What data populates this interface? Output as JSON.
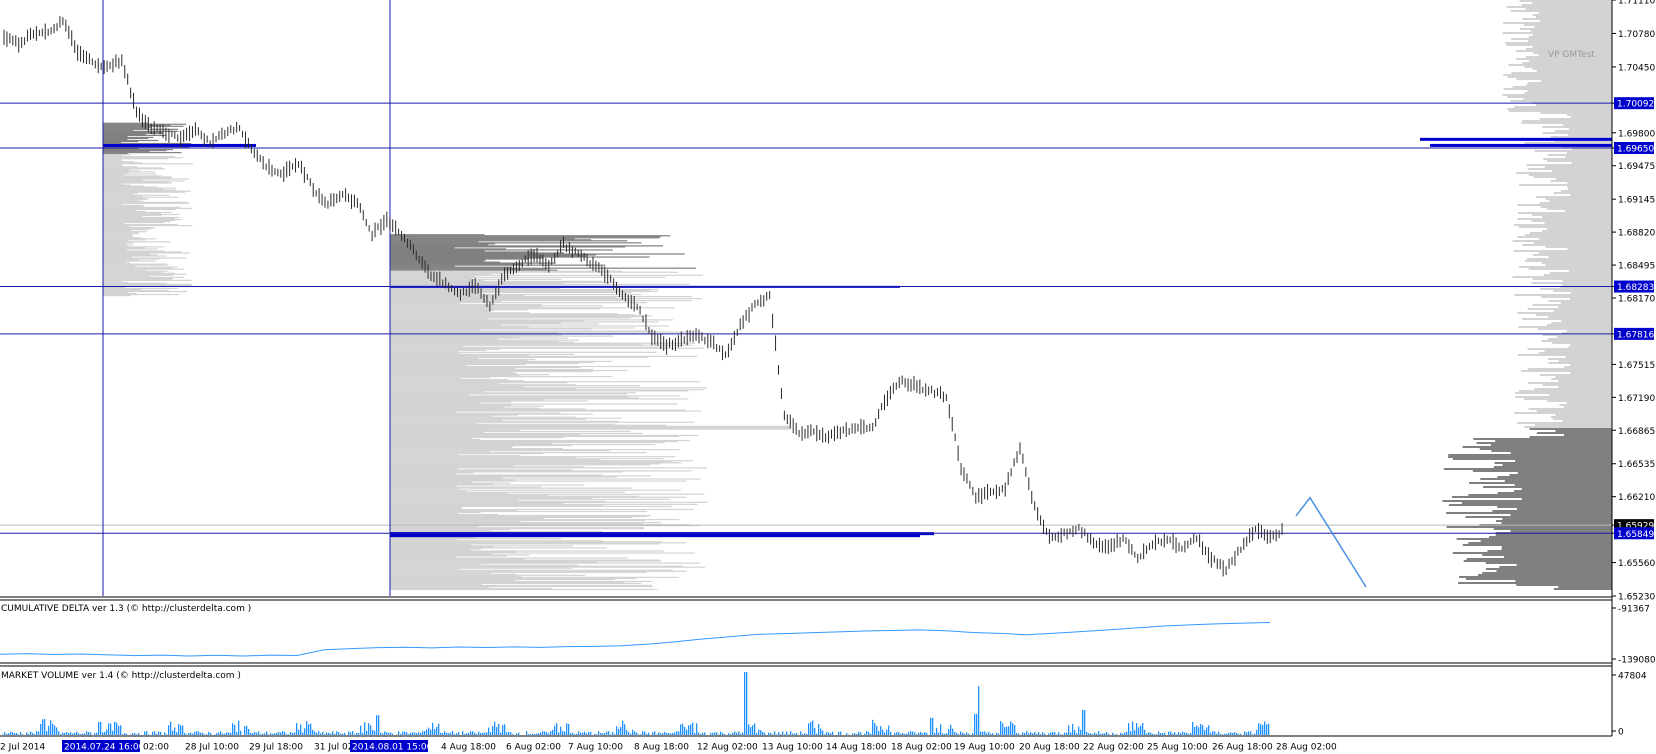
{
  "chart_data": [
    {
      "type": "line",
      "subtype": "candlestick-bars",
      "title": "",
      "corner_label": "VP GMTest",
      "y_axis_ticks": [
        "1.71110",
        "1.70780",
        "1.70450",
        "1.70092",
        "1.69800",
        "1.69650",
        "1.69475",
        "1.69145",
        "1.68820",
        "1.68495",
        "1.68283",
        "1.68170",
        "1.67816",
        "1.67515",
        "1.67190",
        "1.66865",
        "1.66535",
        "1.66210",
        "1.65929",
        "1.65849",
        "1.65560",
        "1.65230"
      ],
      "highlighted_levels": [
        {
          "label": "1.70092",
          "value": 1.70092,
          "tag_color": "#0000cd"
        },
        {
          "label": "1.69650",
          "value": 1.6965,
          "tag_color": "#0000cd"
        },
        {
          "label": "1.68283",
          "value": 1.68283,
          "tag_color": "#0000cd"
        },
        {
          "label": "1.67816",
          "value": 1.67816,
          "tag_color": "#0000cd"
        },
        {
          "label": "1.65929",
          "value": 1.65929,
          "tag_color": "#000000"
        },
        {
          "label": "1.65849",
          "value": 1.65849,
          "tag_color": "#0000cd"
        }
      ],
      "ylim": [
        1.6523,
        1.7111
      ],
      "x_axis_ticks": [
        "2 Jul 2014",
        "2014.07.24 16:00",
        "02:00",
        "28 Jul 10:00",
        "29 Jul 18:00",
        "31 Jul 02",
        "2014.08.01 15:00",
        "4 Aug 18:00",
        "6 Aug 02:00",
        "7 Aug 10:00",
        "8 Aug 18:00",
        "12 Aug 02:00",
        "13 Aug 10:00",
        "14 Aug 18:00",
        "18 Aug 02:00",
        "19 Aug 10:00",
        "20 Aug 18:00",
        "22 Aug 02:00",
        "25 Aug 10:00",
        "26 Aug 18:00",
        "28 Aug 02:00"
      ],
      "price_path": [
        1.7075,
        1.7068,
        1.7079,
        1.708,
        1.709,
        1.706,
        1.705,
        1.7045,
        1.7052,
        1.7,
        1.6985,
        1.698,
        1.6975,
        1.6982,
        1.697,
        1.698,
        1.6985,
        1.696,
        1.6945,
        1.694,
        1.695,
        1.6925,
        1.691,
        1.692,
        1.691,
        1.688,
        1.6895,
        1.688,
        1.686,
        1.684,
        1.683,
        1.682,
        1.683,
        1.681,
        1.684,
        1.685,
        1.686,
        1.685,
        1.687,
        1.686,
        1.685,
        1.684,
        1.682,
        1.681,
        1.678,
        1.677,
        1.6775,
        1.678,
        1.6775,
        1.676,
        1.679,
        1.681,
        1.682,
        1.67,
        1.6685,
        1.6685,
        1.668,
        1.6685,
        1.6688,
        1.669,
        1.672,
        1.6735,
        1.673,
        1.6725,
        1.672,
        1.665,
        1.662,
        1.6625,
        1.663,
        1.667,
        1.661,
        1.658,
        1.6585,
        1.659,
        1.6575,
        1.657,
        1.658,
        1.656,
        1.6575,
        1.658,
        1.657,
        1.658,
        1.656,
        1.655,
        1.657,
        1.659,
        1.658,
        1.659
      ],
      "projection": [
        [
          1.6602
        ],
        [
          1.662
        ],
        [
          1.6532
        ]
      ],
      "volume_profile_note": "session volume profiles drawn as horizontal histograms"
    },
    {
      "type": "line",
      "title": "CUMULATIVE DELTA ver 1.3 (© http://clusterdelta.com )",
      "y_axis_ticks": [
        "-91367",
        "-139080"
      ],
      "ylim": [
        -139080,
        -91367
      ],
      "series": [
        {
          "values": [
            -134000,
            -133500,
            -134200,
            -133800,
            -134500,
            -135200,
            -134800,
            -135500,
            -134900,
            -135600,
            -134800,
            -135100,
            -130000,
            -129000,
            -128200,
            -127800,
            -128400,
            -127600,
            -128000,
            -127500,
            -127900,
            -127300,
            -127000,
            -126500,
            -125000,
            -123000,
            -120500,
            -118500,
            -116500,
            -115800,
            -115000,
            -114200,
            -113500,
            -113000,
            -112500,
            -113200,
            -114800,
            -115500,
            -116800,
            -115400,
            -114000,
            -112500,
            -110800,
            -109200,
            -108000,
            -107200,
            -106500,
            -106000
          ]
        }
      ]
    },
    {
      "type": "bar",
      "title": "MARKET VOLUME ver 1.4 (© http://clusterdelta.com )",
      "y_axis_ticks": [
        "47804",
        "0"
      ],
      "ylim": [
        0,
        47804
      ],
      "peaks": [
        {
          "x_frac": 0.027,
          "value": 12000
        },
        {
          "x_frac": 0.062,
          "value": 10000
        },
        {
          "x_frac": 0.234,
          "value": 15000
        },
        {
          "x_frac": 0.462,
          "value": 47804
        },
        {
          "x_frac": 0.578,
          "value": 13000
        },
        {
          "x_frac": 0.606,
          "value": 37000
        },
        {
          "x_frac": 0.672,
          "value": 19000
        },
        {
          "x_frac": 0.605,
          "value": 16000
        }
      ]
    }
  ],
  "colors": {
    "blue_line": "#1a1aa8",
    "tag_blue": "#0000cd",
    "bar_gray": "#2a2a2a",
    "vp_light": "#d3d3d3",
    "vp_dark": "#808080",
    "vp_poc": "#0000cd",
    "delta_line": "#3399ff",
    "volume_bars": "#1e90ff",
    "projection": "#4a90e2"
  }
}
